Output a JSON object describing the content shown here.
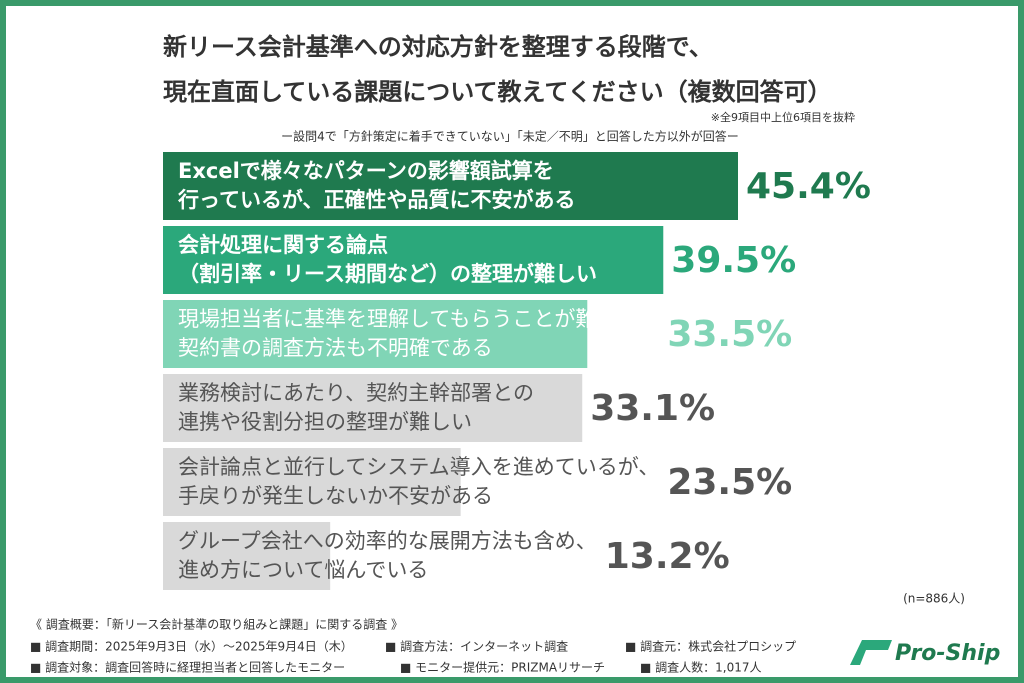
{
  "chart_data": {
    "type": "bar",
    "title": [
      "新リース会計基準への対応方針を整理する段階で、",
      "現在直面している課題について教えてください（複数回答可）"
    ],
    "note": "※全9項目中上位6項目を抜粋",
    "subtitle": "ー設問4で「方針策定に着手できていない」「未定／不明」と回答した方以外が回答ー",
    "categories": [
      [
        "Excelで様々なパターンの影響額試算を",
        "行っているが、正確性や品質に不安がある"
      ],
      [
        "会計処理に関する論点",
        "（割引率・リース期間など）の整理が難しい"
      ],
      [
        "現場担当者に基準を理解してもらうことが難しく、",
        "契約書の調査方法も不明確である"
      ],
      [
        "業務検討にあたり、契約主幹部署との",
        "連携や役割分担の整理が難しい"
      ],
      [
        "会計論点と並行してシステム導入を進めているが、",
        "手戻りが発生しないか不安がある"
      ],
      [
        "グループ会社への効率的な展開方法も含め、",
        "進め方について悩んでいる"
      ]
    ],
    "values": [
      45.4,
      39.5,
      33.5,
      33.1,
      23.5,
      13.2
    ],
    "value_labels": [
      "45.4%",
      "39.5%",
      "33.5%",
      "33.1%",
      "23.5%",
      "13.2%"
    ],
    "colors": [
      "#1f7a4f",
      "#2ba87b",
      "#80d5b6",
      "#d9d9d9",
      "#d9d9d9",
      "#d9d9d9"
    ],
    "sample": "(n=886人)",
    "footer": [
      "《 調査概要：「新リース会計基準の取り組みと課題」に関する調査 》",
      "■ 調査期間：2025年9月3日（水）～2025年9月4日（木）",
      "■ 調査方法：インターネット調査",
      "■ 調査元：株式会社プロシップ",
      "■ 調査対象：調査回答時に経理担当者と回答したモニター",
      "■ モニター提供元：PRIZMAリサーチ",
      "■ 調査人数：1,017人"
    ],
    "logo": "Pro-Ship"
  }
}
